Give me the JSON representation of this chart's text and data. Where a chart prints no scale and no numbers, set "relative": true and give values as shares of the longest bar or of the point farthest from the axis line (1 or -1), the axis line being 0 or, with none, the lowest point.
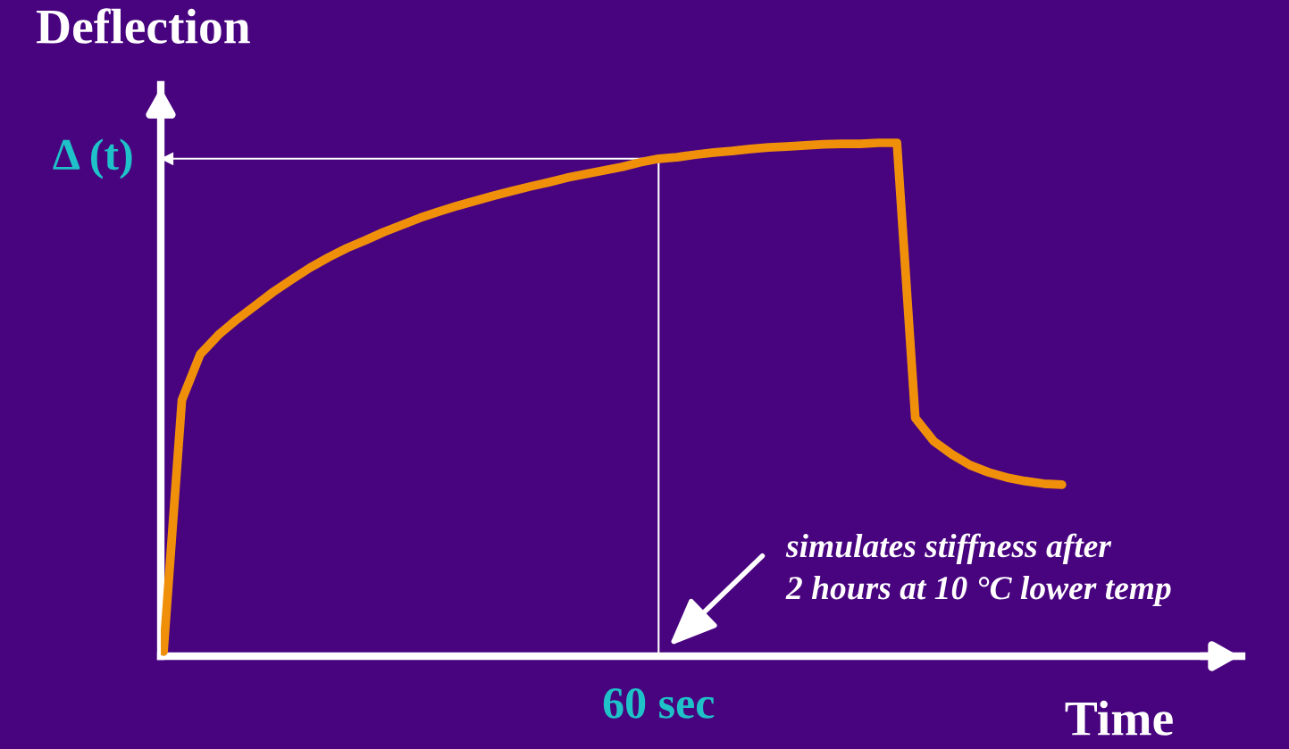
{
  "chart_data": {
    "type": "line",
    "relative": true,
    "xlabel": "Time",
    "ylabel": "Deflection",
    "categories": [
      null,
      null,
      null,
      null,
      null,
      null,
      null,
      null,
      null,
      null,
      null,
      null,
      null,
      null,
      null,
      null,
      null,
      null,
      null,
      null,
      null,
      null,
      null,
      null,
      null,
      null,
      null,
      null,
      null,
      null,
      null,
      null,
      null,
      null,
      null,
      null,
      null,
      null,
      null,
      null,
      null,
      null,
      null,
      null,
      null,
      null,
      null,
      null,
      null,
      null
    ],
    "series": [
      {
        "color": "#f0900a",
        "values": [
          0.009,
          0.499,
          0.588,
          0.626,
          0.656,
          0.683,
          0.71,
          0.734,
          0.757,
          0.777,
          0.795,
          0.81,
          0.826,
          0.84,
          0.854,
          0.866,
          0.877,
          0.887,
          0.897,
          0.906,
          0.915,
          0.923,
          0.932,
          0.939,
          0.946,
          0.953,
          0.962,
          0.969,
          0.972,
          0.977,
          0.981,
          0.984,
          0.988,
          0.991,
          0.993,
          0.995,
          0.997,
          0.998,
          0.998,
          1.0,
          1.0,
          0.464,
          0.419,
          0.393,
          0.372,
          0.358,
          0.348,
          0.341,
          0.336,
          0.334
        ]
      }
    ],
    "ref_lines": [
      {
        "axis": "y",
        "value": 0.969,
        "label": "Δ (t)",
        "color": "#ffffff"
      }
    ],
    "annotations": [
      "simulates stiffness after\n2 hours at 10 °C lower temp",
      "60 sec"
    ],
    "legend": false,
    "marker": "none",
    "line_style": "solid"
  }
}
